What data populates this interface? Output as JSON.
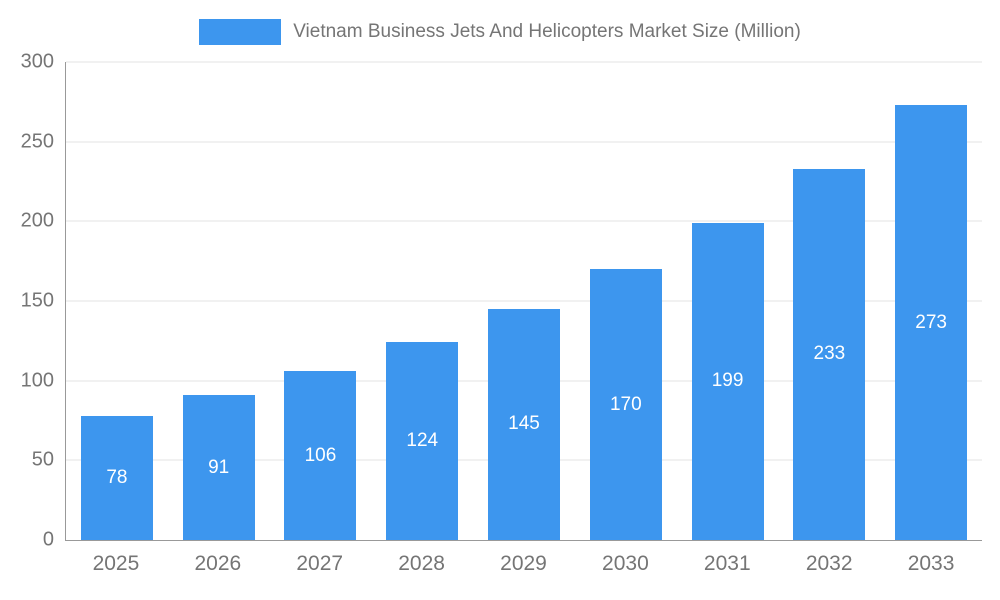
{
  "chart_data": {
    "type": "bar",
    "title": "Vietnam Business Jets And Helicopters Market Size (Million)",
    "categories": [
      "2025",
      "2026",
      "2027",
      "2028",
      "2029",
      "2030",
      "2031",
      "2032",
      "2033"
    ],
    "values": [
      78,
      91,
      106,
      124,
      145,
      170,
      199,
      233,
      273
    ],
    "xlabel": "",
    "ylabel": "",
    "ylim": [
      0,
      300
    ],
    "yticks": [
      0,
      50,
      100,
      150,
      200,
      250,
      300
    ],
    "grid": true,
    "legend_position": "top",
    "colors": {
      "bar": "#3d96ee",
      "axis_text": "#757575",
      "gridline": "#e3e3e3",
      "axis_line": "#999999",
      "bar_value_label": "#ffffff",
      "background": "#ffffff"
    }
  }
}
